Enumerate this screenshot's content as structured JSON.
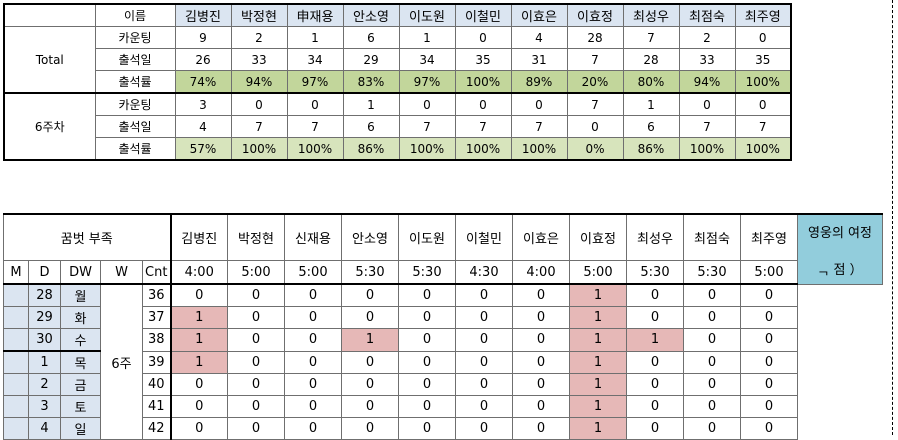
{
  "summary": {
    "header_label": "이름",
    "names": [
      "김병진",
      "박정현",
      "申재용",
      "안소영",
      "이도원",
      "이철민",
      "이효은",
      "이효정",
      "최성우",
      "최점숙",
      "최주영"
    ],
    "groups": [
      {
        "label": "Total",
        "rows": [
          {
            "label": "카운팅",
            "values": [
              "9",
              "2",
              "1",
              "6",
              "1",
              "0",
              "4",
              "28",
              "7",
              "2",
              "0"
            ]
          },
          {
            "label": "출석일",
            "values": [
              "26",
              "33",
              "34",
              "29",
              "34",
              "35",
              "31",
              "7",
              "28",
              "33",
              "35"
            ]
          },
          {
            "label": "출석률",
            "values": [
              "74%",
              "94%",
              "97%",
              "83%",
              "97%",
              "100%",
              "89%",
              "20%",
              "80%",
              "94%",
              "100%"
            ]
          }
        ]
      },
      {
        "label": "6주차",
        "rows": [
          {
            "label": "카운팅",
            "values": [
              "3",
              "0",
              "0",
              "1",
              "0",
              "0",
              "0",
              "7",
              "1",
              "0",
              "0"
            ]
          },
          {
            "label": "출석일",
            "values": [
              "4",
              "7",
              "7",
              "6",
              "7",
              "7",
              "7",
              "0",
              "6",
              "7",
              "7"
            ]
          },
          {
            "label": "출석률",
            "values": [
              "57%",
              "100%",
              "100%",
              "86%",
              "100%",
              "100%",
              "100%",
              "0%",
              "86%",
              "100%",
              "100%"
            ]
          }
        ]
      }
    ]
  },
  "attendance": {
    "title": "꿈벗 부족",
    "summary_col_title": "영웅의 여정",
    "summary_col_body": "ᆨ 점 ）",
    "col_headers": {
      "m": "M",
      "d": "D",
      "dw": "DW",
      "w": "W",
      "cnt": "Cnt"
    },
    "names": [
      "김병진",
      "박정현",
      "신재용",
      "안소영",
      "이도원",
      "이철민",
      "이효은",
      "이효정",
      "최성우",
      "최점숙",
      "최주영"
    ],
    "times": [
      "4:00",
      "5:00",
      "5:00",
      "5:30",
      "5:30",
      "4:30",
      "4:00",
      "5:00",
      "5:30",
      "5:30",
      "5:00"
    ],
    "week_label": "6주",
    "rows": [
      {
        "d": "28",
        "dw": "월",
        "cnt": "36",
        "v": [
          "0",
          "0",
          "0",
          "0",
          "0",
          "0",
          "0",
          "1",
          "0",
          "0",
          "0"
        ]
      },
      {
        "d": "29",
        "dw": "화",
        "cnt": "37",
        "v": [
          "1",
          "0",
          "0",
          "0",
          "0",
          "0",
          "0",
          "1",
          "0",
          "0",
          "0"
        ]
      },
      {
        "d": "30",
        "dw": "수",
        "cnt": "38",
        "v": [
          "1",
          "0",
          "0",
          "1",
          "0",
          "0",
          "0",
          "1",
          "1",
          "0",
          "0"
        ]
      },
      {
        "d": "1",
        "dw": "목",
        "cnt": "39",
        "v": [
          "1",
          "0",
          "0",
          "0",
          "0",
          "0",
          "0",
          "1",
          "0",
          "0",
          "0"
        ]
      },
      {
        "d": "2",
        "dw": "금",
        "cnt": "40",
        "v": [
          "0",
          "0",
          "0",
          "0",
          "0",
          "0",
          "0",
          "1",
          "0",
          "0",
          "0"
        ]
      },
      {
        "d": "3",
        "dw": "토",
        "cnt": "41",
        "v": [
          "0",
          "0",
          "0",
          "0",
          "0",
          "0",
          "0",
          "1",
          "0",
          "0",
          "0"
        ]
      },
      {
        "d": "4",
        "dw": "일",
        "cnt": "42",
        "v": [
          "0",
          "0",
          "0",
          "0",
          "0",
          "0",
          "0",
          "1",
          "0",
          "0",
          "0"
        ]
      }
    ],
    "highlight_color": "#e6b8b7"
  }
}
